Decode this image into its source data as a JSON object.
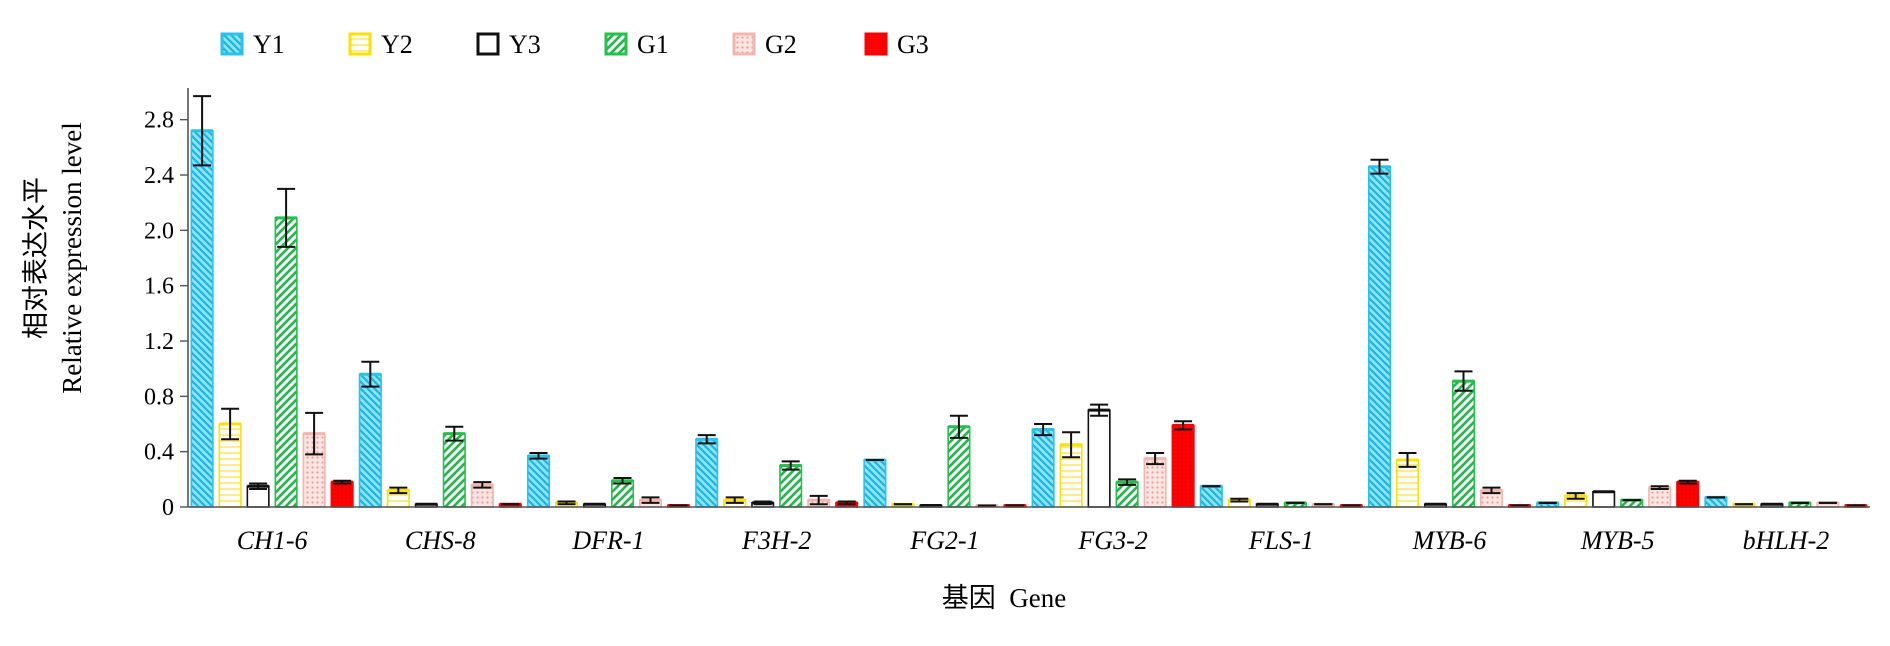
{
  "chart_data": {
    "type": "bar",
    "title": "",
    "xlabel": "基因  Gene",
    "ylabel_cn": "相对表达水平",
    "ylabel": "Relative expression level",
    "ylim": [
      0,
      3.0
    ],
    "yticks": [
      0,
      0.4,
      0.8,
      1.2,
      1.6,
      2.0,
      2.4,
      2.8
    ],
    "ytick_labels": [
      "0",
      "0.4",
      "0.8",
      "1.2",
      "1.6",
      "2.0",
      "2.4",
      "2.8"
    ],
    "grid": false,
    "legend": "top-left",
    "categories": [
      "CH1-6",
      "CHS-8",
      "DFR-1",
      "F3H-2",
      "FG2-1",
      "FG3-2",
      "FLS-1",
      "MYB-6",
      "MYB-5",
      "bHLH-2"
    ],
    "series": [
      {
        "name": "Y1",
        "color": "#29c3ea",
        "pattern": "hatch-back",
        "values": [
          2.72,
          0.96,
          0.37,
          0.49,
          0.34,
          0.56,
          0.15,
          2.46,
          0.03,
          0.07
        ],
        "errors": [
          0.25,
          0.09,
          0.02,
          0.03,
          0.0,
          0.04,
          0.0,
          0.05,
          0.0,
          0.0
        ]
      },
      {
        "name": "Y2",
        "color": "#ffe000",
        "pattern": "horizontal",
        "values": [
          0.6,
          0.12,
          0.03,
          0.05,
          0.02,
          0.45,
          0.05,
          0.34,
          0.08,
          0.02
        ],
        "errors": [
          0.11,
          0.02,
          0.01,
          0.02,
          0.0,
          0.09,
          0.01,
          0.05,
          0.02,
          0.0
        ]
      },
      {
        "name": "Y3",
        "color": "#111111",
        "pattern": "none",
        "values": [
          0.15,
          0.02,
          0.02,
          0.03,
          0.01,
          0.7,
          0.02,
          0.02,
          0.11,
          0.02
        ],
        "errors": [
          0.02,
          0.0,
          0.0,
          0.01,
          0.0,
          0.04,
          0.0,
          0.0,
          0.0,
          0.0
        ]
      },
      {
        "name": "G1",
        "color": "#22c14b",
        "pattern": "hatch-forward",
        "values": [
          2.09,
          0.53,
          0.19,
          0.3,
          0.58,
          0.18,
          0.03,
          0.91,
          0.05,
          0.03
        ],
        "errors": [
          0.21,
          0.05,
          0.02,
          0.03,
          0.08,
          0.02,
          0.0,
          0.07,
          0.0,
          0.0
        ]
      },
      {
        "name": "G2",
        "color": "#f2b6b0",
        "pattern": "dots",
        "values": [
          0.53,
          0.16,
          0.05,
          0.05,
          0.01,
          0.35,
          0.02,
          0.12,
          0.14,
          0.03
        ],
        "errors": [
          0.15,
          0.02,
          0.02,
          0.03,
          0.0,
          0.04,
          0.0,
          0.02,
          0.01,
          0.0
        ]
      },
      {
        "name": "G3",
        "color": "#ff0000",
        "pattern": "dense",
        "values": [
          0.18,
          0.02,
          0.01,
          0.03,
          0.01,
          0.59,
          0.01,
          0.01,
          0.18,
          0.01
        ],
        "errors": [
          0.01,
          0.0,
          0.0,
          0.01,
          0.0,
          0.03,
          0.0,
          0.0,
          0.01,
          0.0
        ]
      }
    ]
  }
}
